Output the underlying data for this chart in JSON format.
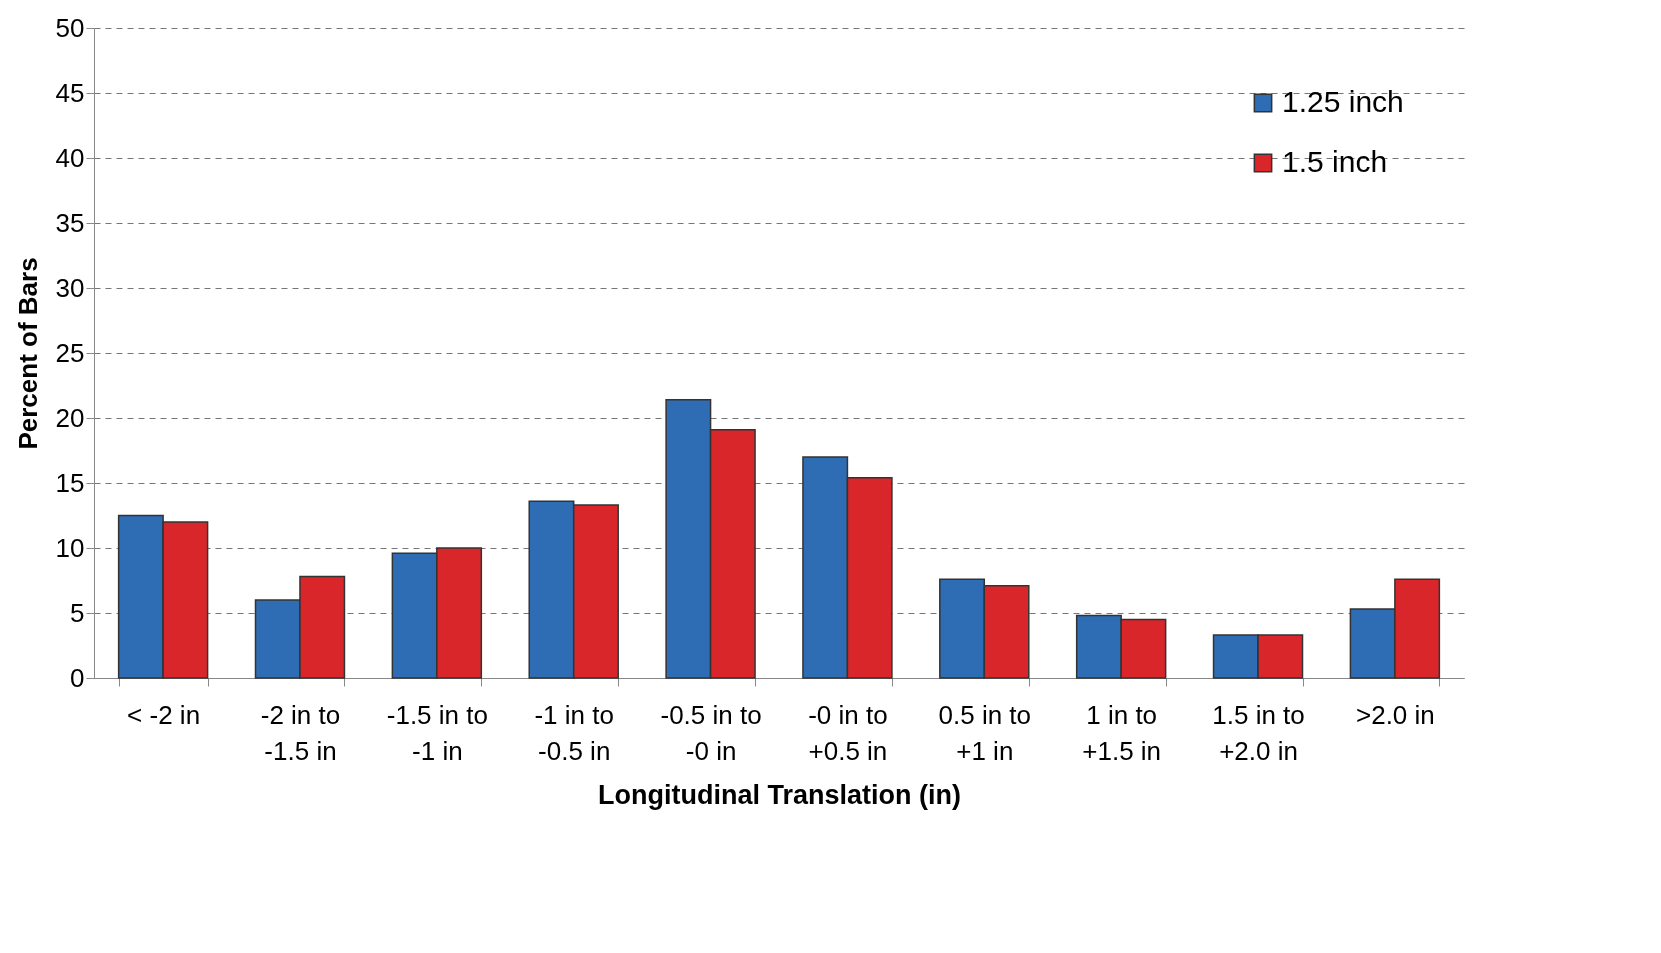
{
  "chart_data": {
    "type": "bar",
    "xlabel": "Longitudinal Translation (in)",
    "ylabel": "Percent of Bars",
    "categories": [
      "< -2 in",
      "-2 in to -1.5 in",
      "-1.5 in to -1 in",
      "-1 in to -0.5 in",
      "-0.5 in to -0 in",
      "-0 in to +0.5 in",
      "0.5 in to +1 in",
      "1 in to +1.5 in",
      "1.5 in to +2.0 in",
      ">2.0 in"
    ],
    "series": [
      {
        "name": "1.25 inch",
        "color": "#2e6db4",
        "values": [
          12.5,
          6.0,
          9.6,
          13.6,
          21.4,
          17.0,
          7.6,
          4.8,
          3.3,
          5.3
        ]
      },
      {
        "name": "1.5 inch",
        "color": "#d9262b",
        "values": [
          12.0,
          7.8,
          10.0,
          13.3,
          19.1,
          15.4,
          7.1,
          4.5,
          3.3,
          7.6
        ]
      }
    ],
    "ylim": [
      0,
      50
    ],
    "yticks": [
      0,
      5,
      10,
      15,
      20,
      25,
      30,
      35,
      40,
      45,
      50
    ],
    "grid": "y",
    "legend": "top right"
  }
}
